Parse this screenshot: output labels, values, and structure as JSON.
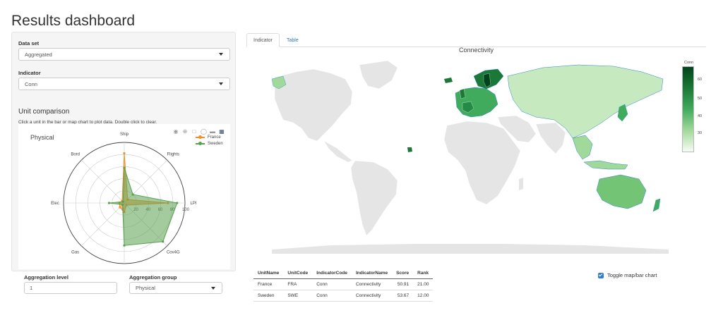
{
  "page": {
    "title": "Results dashboard"
  },
  "sidebar": {
    "dataset_label": "Data set",
    "dataset_value": "Aggregated",
    "indicator_label": "Indicator",
    "indicator_value": "Conn",
    "unit_comparison_title": "Unit comparison",
    "unit_comparison_help": "Click a unit in the bar or map chart to plot data. Double click to clear.",
    "aggregation_level_label": "Aggregation level",
    "aggregation_level_value": "1",
    "aggregation_group_label": "Aggregation group",
    "aggregation_group_value": "Physical"
  },
  "tabs": [
    {
      "label": "Indicator",
      "active": true
    },
    {
      "label": "Table",
      "active": false
    }
  ],
  "map": {
    "title": "Connectivity",
    "legend_title": "Conn",
    "colorbar_ticks": [
      "60",
      "50",
      "40",
      "30"
    ],
    "colorscale": [
      "#00441b",
      "#1b7837",
      "#41ab5d",
      "#a1d99b",
      "#f7fcf5"
    ],
    "no_data_color": "#e5e5e5"
  },
  "chart_data": {
    "type": "radar",
    "title": "Physical",
    "axes": [
      "Ship",
      "Flights",
      "LPI",
      "Cov4G",
      "ConSpeed",
      "Gas",
      "Elec",
      "Bord"
    ],
    "radial_ticks": [
      "0",
      "20",
      "40",
      "60",
      "80",
      "100"
    ],
    "rlim": [
      0,
      100
    ],
    "legend_position": "top-right",
    "series": [
      {
        "name": "France",
        "color": "#f28e2b",
        "values": [
          82,
          8,
          72,
          5,
          15,
          10,
          8,
          5
        ]
      },
      {
        "name": "Sweden",
        "color": "#59a14f",
        "values": [
          58,
          20,
          87,
          90,
          70,
          4,
          25,
          3
        ]
      }
    ]
  },
  "table": {
    "columns": [
      "UnitName",
      "UnitCode",
      "IndicatorCode",
      "IndicatorName",
      "Score",
      "Rank"
    ],
    "rows": [
      [
        "France",
        "FRA",
        "Conn",
        "Connectivity",
        "50.91",
        "21.00"
      ],
      [
        "Sweden",
        "SWE",
        "Conn",
        "Connectivity",
        "53.67",
        "12.00"
      ]
    ]
  },
  "toggle": {
    "label": "Toggle map/bar chart",
    "checked": true
  }
}
